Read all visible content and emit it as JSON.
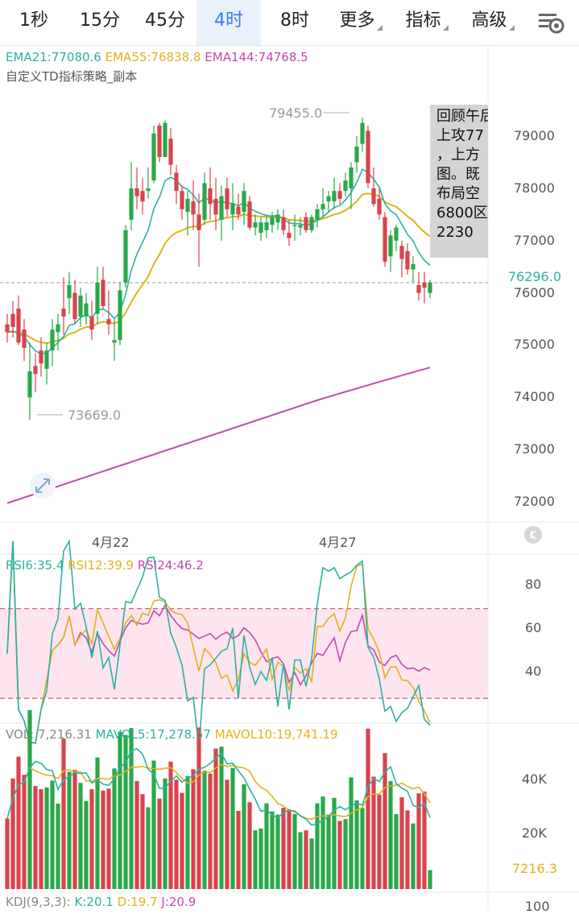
{
  "tabs": [
    {
      "label": "1秒",
      "active": false,
      "dropdown": false
    },
    {
      "label": "15分",
      "active": false,
      "dropdown": false
    },
    {
      "label": "45分",
      "active": false,
      "dropdown": false
    },
    {
      "label": "4时",
      "active": true,
      "dropdown": false
    },
    {
      "label": "8时",
      "active": false,
      "dropdown": false
    },
    {
      "label": "更多",
      "active": false,
      "dropdown": true
    },
    {
      "label": "指标",
      "active": false,
      "dropdown": true
    },
    {
      "label": "高级",
      "active": false,
      "dropdown": true
    }
  ],
  "settings_icon": "chart-settings-gear-icon",
  "main_legend": {
    "ema21": "EMA21:77080.6",
    "ema55": "EMA55:76838.8",
    "ema144": "EMA144:74768.5",
    "colors": {
      "ema21": "#2ab3a3",
      "ema55": "#e2b21a",
      "ema144": "#c04ab0"
    }
  },
  "strategy_label": "自定义TD指标策略_副本",
  "price_axis": [
    "79000",
    "78000",
    "77000",
    "76000",
    "75000",
    "74000",
    "73000",
    "72000"
  ],
  "current_price": "76296.0",
  "high_label": "79455.0",
  "low_label": "73669.0",
  "note_lines": [
    "回顾午后",
    "上攻77",
    "，上方",
    "图。既",
    "布局空",
    "6800区",
    "2230"
  ],
  "dates": [
    "4月22",
    "4月27"
  ],
  "rsi_legend": {
    "rsi6": "RSI6:35.4",
    "rsi12": "RSI12:39.9",
    "rsi24": "RSI24:46.2"
  },
  "rsi_axis": [
    "80",
    "60",
    "40"
  ],
  "vol_legend": {
    "vol": "VOL: 7,216.31",
    "mavol5": "MAVOL5:17,278.57",
    "mavol10": "MAVOL10:19,741.19"
  },
  "vol_axis": [
    "40K",
    "20K"
  ],
  "vol_current": "7216.3",
  "kdj_legend": {
    "name": "KDJ(9,3,3):",
    "k": "K:20.1",
    "d": "D:19.7",
    "j": "J:20.9"
  },
  "kdj_axis": "100",
  "colors": {
    "up": "#2aa84a",
    "down": "#d8434e",
    "rsi_band": "#fde4ef"
  },
  "chart_data": {
    "type": "candlestick",
    "candles": [
      [
        75500,
        75700,
        75150,
        75350
      ],
      [
        75700,
        75950,
        75250,
        75450
      ],
      [
        75800,
        76050,
        75100,
        75150
      ],
      [
        75400,
        75600,
        74800,
        75050
      ],
      [
        74100,
        75150,
        73669,
        74600
      ],
      [
        74700,
        74950,
        74200,
        74550
      ],
      [
        75000,
        75250,
        74500,
        74750
      ],
      [
        74650,
        75150,
        74350,
        75000
      ],
      [
        75000,
        75600,
        74700,
        75400
      ],
      [
        75350,
        75700,
        75000,
        75500
      ],
      [
        75800,
        76400,
        75300,
        75650
      ],
      [
        76000,
        76500,
        75700,
        76250
      ],
      [
        76100,
        76350,
        75500,
        75600
      ],
      [
        75650,
        76200,
        75450,
        76050
      ],
      [
        75650,
        76100,
        75500,
        75900
      ],
      [
        75650,
        75950,
        75200,
        75400
      ],
      [
        75700,
        76600,
        75500,
        76300
      ],
      [
        76350,
        76600,
        75800,
        75850
      ],
      [
        75600,
        76150,
        75300,
        75500
      ],
      [
        75150,
        75600,
        74800,
        75200
      ],
      [
        75200,
        76300,
        75100,
        76150
      ],
      [
        76300,
        77400,
        76200,
        77300
      ],
      [
        77500,
        78600,
        77300,
        78100
      ],
      [
        78100,
        78500,
        77700,
        77950
      ],
      [
        78050,
        78300,
        77600,
        77850
      ],
      [
        78050,
        78500,
        77900,
        78100
      ],
      [
        78250,
        79300,
        78200,
        79150
      ],
      [
        79300,
        79350,
        78600,
        78700
      ],
      [
        78700,
        79400,
        78700,
        79350
      ],
      [
        79050,
        79250,
        78350,
        78550
      ],
      [
        78400,
        78550,
        77800,
        78050
      ],
      [
        78050,
        78150,
        77500,
        77700
      ],
      [
        77650,
        78050,
        77200,
        77900
      ],
      [
        77850,
        78250,
        77300,
        77600
      ],
      [
        77600,
        78000,
        76600,
        77300
      ],
      [
        77500,
        78400,
        77400,
        78200
      ],
      [
        78100,
        78500,
        77500,
        77800
      ],
      [
        77900,
        78300,
        77300,
        77600
      ],
      [
        77500,
        78150,
        77100,
        77950
      ],
      [
        78100,
        78300,
        77550,
        77700
      ],
      [
        77600,
        78200,
        77300,
        77800
      ],
      [
        77750,
        78000,
        77500,
        77600
      ],
      [
        77650,
        78200,
        77400,
        78050
      ],
      [
        77850,
        77950,
        77300,
        77350
      ],
      [
        77350,
        77600,
        77200,
        77450
      ],
      [
        77250,
        77550,
        77100,
        77450
      ],
      [
        77300,
        77600,
        77150,
        77450
      ],
      [
        77400,
        77650,
        77250,
        77550
      ],
      [
        77450,
        77700,
        77300,
        77600
      ],
      [
        77550,
        77700,
        77200,
        77300
      ],
      [
        77250,
        77500,
        77000,
        77150
      ],
      [
        77400,
        77600,
        77100,
        77400
      ],
      [
        77350,
        77550,
        77200,
        77400
      ],
      [
        77550,
        77650,
        77250,
        77300
      ],
      [
        77300,
        77600,
        77250,
        77550
      ],
      [
        77500,
        77800,
        77350,
        77700
      ],
      [
        77700,
        78100,
        77550,
        77800
      ],
      [
        77850,
        78050,
        77650,
        77950
      ],
      [
        77850,
        78300,
        77700,
        78050
      ],
      [
        78050,
        78200,
        77800,
        77900
      ],
      [
        78050,
        78400,
        77950,
        78250
      ],
      [
        78100,
        78600,
        77700,
        78500
      ],
      [
        78600,
        79100,
        78400,
        78900
      ],
      [
        78950,
        79455,
        78800,
        79350
      ],
      [
        79200,
        79300,
        78100,
        78200
      ],
      [
        78100,
        78500,
        77750,
        77800
      ],
      [
        77900,
        78100,
        77500,
        77600
      ],
      [
        77550,
        77650,
        76600,
        76700
      ],
      [
        76800,
        77300,
        76500,
        77200
      ],
      [
        77100,
        77400,
        76900,
        77350
      ],
      [
        77000,
        77100,
        76400,
        76750
      ],
      [
        76900,
        77050,
        76450,
        76550
      ],
      [
        76550,
        76800,
        76300,
        76650
      ],
      [
        76250,
        76500,
        75950,
        76100
      ],
      [
        76300,
        76500,
        75900,
        76200
      ],
      [
        76100,
        76350,
        76000,
        76296
      ]
    ],
    "ylim": [
      71800,
      79900
    ]
  }
}
